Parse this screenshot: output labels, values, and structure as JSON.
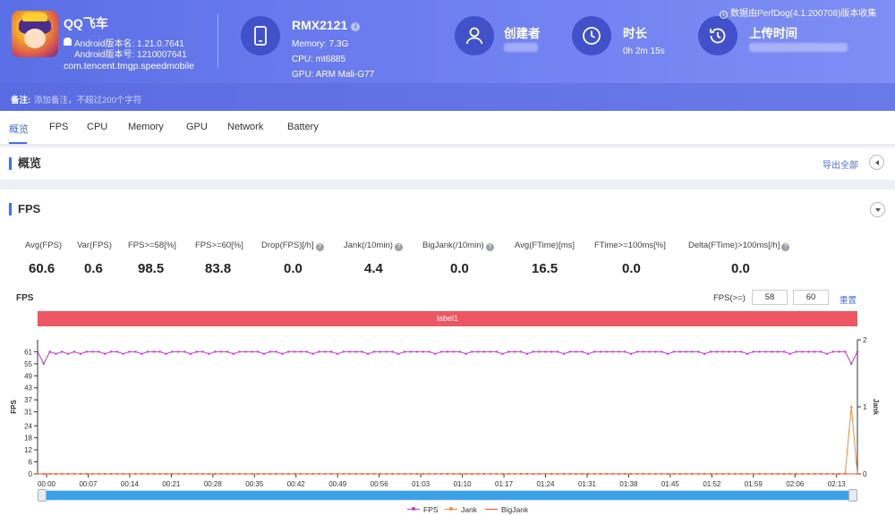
{
  "app": {
    "name": "QQ飞车",
    "version_name": "Android版本名: 1.21.0.7641",
    "version_code": "Android版本号: 1210007641",
    "package": "com.tencent.tmgp.speedmobile"
  },
  "device": {
    "model": "RMX2121",
    "memory": "Memory: 7.3G",
    "cpu": "CPU: mt6885",
    "gpu": "GPU: ARM Mali-G77"
  },
  "meta": {
    "creator_label": "创建者",
    "duration_label": "时长",
    "duration_value": "0h 2m 15s",
    "upload_label": "上传时间"
  },
  "source_note": "数据由PerfDog(4.1.200708)版本收集",
  "remark": {
    "label": "备注:",
    "placeholder": "添加备注，不超过200个字符"
  },
  "tabs": [
    "概览",
    "FPS",
    "CPU",
    "Memory",
    "GPU",
    "Network",
    "Battery"
  ],
  "overview": {
    "title": "概览",
    "export_label": "导出全部"
  },
  "fps_section": {
    "title": "FPS",
    "metrics": [
      {
        "label": "Avg(FPS)",
        "value": "60.6",
        "help": false
      },
      {
        "label": "Var(FPS)",
        "value": "0.6",
        "help": false
      },
      {
        "label": "FPS>=58[%]",
        "value": "98.5",
        "help": false
      },
      {
        "label": "FPS>=60[%]",
        "value": "83.8",
        "help": false
      },
      {
        "label": "Drop(FPS)[/h]",
        "value": "0.0",
        "help": true
      },
      {
        "label": "Jank(/10min)",
        "value": "4.4",
        "help": true
      },
      {
        "label": "BigJank(/10min)",
        "value": "0.0",
        "help": true
      },
      {
        "label": "Avg(FTime)[ms]",
        "value": "16.5",
        "help": false
      },
      {
        "label": "FTime>=100ms[%]",
        "value": "0.0",
        "help": false
      },
      {
        "label": "Delta(FTime)>100ms[/h]",
        "value": "0.0",
        "help": true
      }
    ],
    "chart_title": "FPS",
    "threshold_label": "FPS(>=)",
    "threshold_values": [
      "58",
      "60"
    ],
    "reset_label": "重置",
    "band_label": "label1"
  },
  "chart_data": {
    "type": "line",
    "ylabel": "FPS",
    "y2label": "Jank",
    "yticks": [
      0,
      6,
      12,
      18,
      24,
      31,
      37,
      43,
      49,
      55,
      61
    ],
    "ylim": [
      0,
      67
    ],
    "y2ticks": [
      0,
      1,
      2
    ],
    "y2lim": [
      0,
      2
    ],
    "xticks": [
      "00:00",
      "00:07",
      "00:14",
      "00:21",
      "00:28",
      "00:35",
      "00:42",
      "00:49",
      "00:56",
      "01:03",
      "01:10",
      "01:17",
      "01:24",
      "01:31",
      "01:38",
      "01:45",
      "01:52",
      "01:59",
      "02:06",
      "02:13"
    ],
    "duration_s": 135,
    "series": [
      {
        "name": "FPS",
        "color": "#c23ccf",
        "axis": "left",
        "values": [
          61,
          55,
          61,
          60,
          61,
          60,
          61,
          60,
          61,
          61,
          61,
          60,
          61,
          61,
          60,
          61,
          61,
          60,
          61,
          61,
          61,
          60,
          61,
          61,
          61,
          60,
          61,
          61,
          60,
          61,
          61,
          61,
          60,
          61,
          61,
          61,
          61,
          60,
          61,
          61,
          60,
          61,
          61,
          61,
          61,
          60,
          61,
          61,
          61,
          60,
          61,
          61,
          61,
          61,
          60,
          61,
          61,
          61,
          61,
          60,
          61,
          61,
          61,
          61,
          61,
          60,
          61,
          61,
          61,
          61,
          60,
          61,
          61,
          61,
          61,
          61,
          60,
          61,
          61,
          61,
          60,
          61,
          61,
          61,
          61,
          61,
          60,
          61,
          61,
          61,
          60,
          61,
          61,
          61,
          61,
          61,
          61,
          60,
          61,
          61,
          61,
          61,
          61,
          60,
          61,
          61,
          61,
          61,
          61,
          60,
          61,
          61,
          61,
          61,
          61,
          61,
          60,
          61,
          61,
          61,
          61,
          61,
          61,
          60,
          61,
          61,
          61,
          61,
          61,
          60,
          61,
          61,
          61,
          55,
          61
        ]
      },
      {
        "name": "Jank",
        "color": "#f08c3c",
        "axis": "right",
        "values": [
          0,
          0,
          0,
          0,
          0,
          0,
          0,
          0,
          0,
          0,
          0,
          0,
          0,
          0,
          0,
          0,
          0,
          0,
          0,
          0,
          0,
          0,
          0,
          0,
          0,
          0,
          0,
          0,
          0,
          0,
          0,
          0,
          0,
          0,
          0,
          0,
          0,
          0,
          0,
          0,
          0,
          0,
          0,
          0,
          0,
          0,
          0,
          0,
          0,
          0,
          0,
          0,
          0,
          0,
          0,
          0,
          0,
          0,
          0,
          0,
          0,
          0,
          0,
          0,
          0,
          0,
          0,
          0,
          0,
          0,
          0,
          0,
          0,
          0,
          0,
          0,
          0,
          0,
          0,
          0,
          0,
          0,
          0,
          0,
          0,
          0,
          0,
          0,
          0,
          0,
          0,
          0,
          0,
          0,
          0,
          0,
          0,
          0,
          0,
          0,
          0,
          0,
          0,
          0,
          0,
          0,
          0,
          0,
          0,
          0,
          0,
          0,
          0,
          0,
          0,
          0,
          0,
          0,
          0,
          0,
          0,
          0,
          0,
          0,
          0,
          0,
          0,
          0,
          0,
          0,
          0,
          0,
          0,
          1,
          0
        ]
      },
      {
        "name": "BigJank",
        "color": "#e8503c",
        "axis": "right",
        "values": [
          0,
          0,
          0,
          0,
          0,
          0,
          0,
          0,
          0,
          0,
          0,
          0,
          0,
          0,
          0,
          0,
          0,
          0,
          0,
          0,
          0,
          0,
          0,
          0,
          0,
          0,
          0,
          0,
          0,
          0,
          0,
          0,
          0,
          0,
          0,
          0,
          0,
          0,
          0,
          0,
          0,
          0,
          0,
          0,
          0,
          0,
          0,
          0,
          0,
          0,
          0,
          0,
          0,
          0,
          0,
          0,
          0,
          0,
          0,
          0,
          0,
          0,
          0,
          0,
          0,
          0,
          0,
          0,
          0,
          0,
          0,
          0,
          0,
          0,
          0,
          0,
          0,
          0,
          0,
          0,
          0,
          0,
          0,
          0,
          0,
          0,
          0,
          0,
          0,
          0,
          0,
          0,
          0,
          0,
          0,
          0,
          0,
          0,
          0,
          0,
          0,
          0,
          0,
          0,
          0,
          0,
          0,
          0,
          0,
          0,
          0,
          0,
          0,
          0,
          0,
          0,
          0,
          0,
          0,
          0,
          0,
          0,
          0,
          0,
          0,
          0,
          0,
          0,
          0,
          0,
          0,
          0,
          0,
          0,
          0
        ]
      }
    ],
    "legend_position": "bottom-center",
    "grid": false
  },
  "colors": {
    "accent": "#4a6ee0",
    "header": "#6e7ff0",
    "band": "#ee5663"
  }
}
